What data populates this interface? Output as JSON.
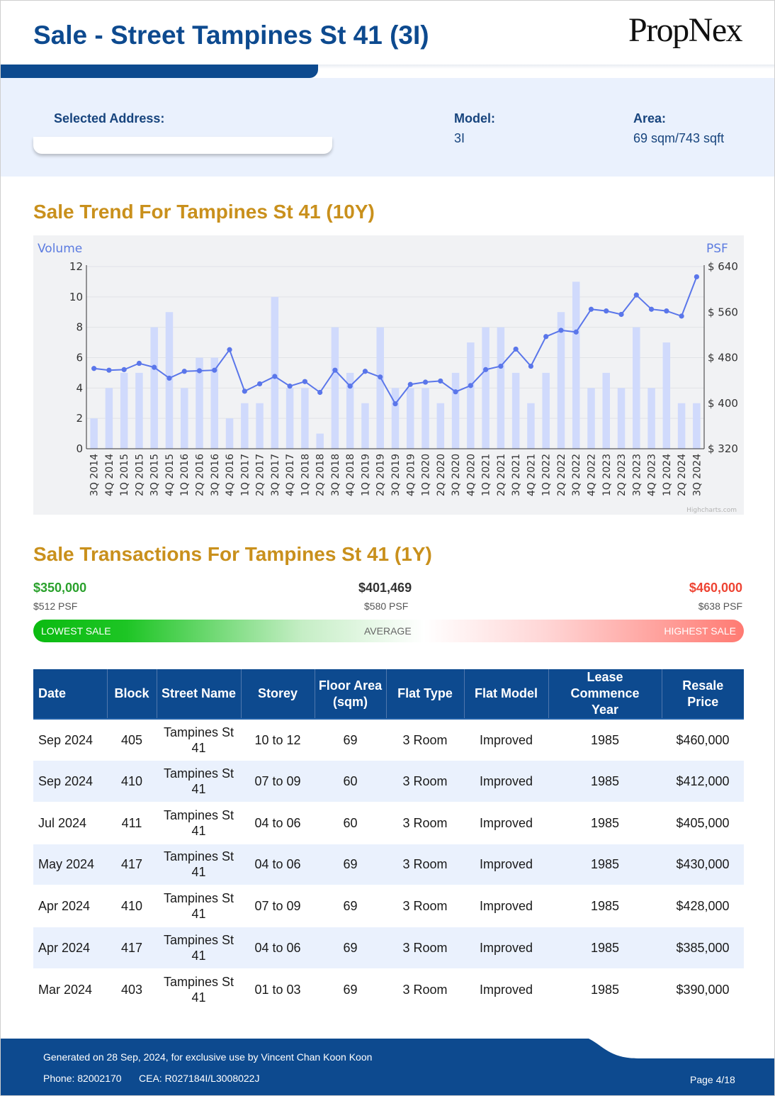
{
  "header": {
    "title": "Sale - Street Tampines St 41 (3I)",
    "logo_text": "PropNex"
  },
  "info": {
    "address_label": "Selected Address:",
    "address_value": "",
    "model_label": "Model:",
    "model_value": "3I",
    "area_label": "Area:",
    "area_value": "69 sqm/743 sqft"
  },
  "trend": {
    "title": "Sale Trend For Tampines St 41 (10Y)"
  },
  "chart_data": {
    "type": "bar+line",
    "left_axis_title": "Volume",
    "right_axis_title": "PSF",
    "left_ticks": [
      "0",
      "2",
      "4",
      "6",
      "8",
      "10",
      "12"
    ],
    "right_ticks": [
      "$ 320",
      "$ 400",
      "$ 480",
      "$ 560",
      "$ 640"
    ],
    "ylim_volume": [
      0,
      12
    ],
    "ylim_psf": [
      320,
      640
    ],
    "credit": "Highcharts.com",
    "categories": [
      "3Q 2014",
      "4Q 2014",
      "1Q 2015",
      "2Q 2015",
      "3Q 2015",
      "4Q 2015",
      "1Q 2016",
      "2Q 2016",
      "3Q 2016",
      "4Q 2016",
      "1Q 2017",
      "2Q 2017",
      "3Q 2017",
      "4Q 2017",
      "1Q 2018",
      "2Q 2018",
      "3Q 2018",
      "4Q 2018",
      "1Q 2019",
      "2Q 2019",
      "3Q 2019",
      "4Q 2019",
      "1Q 2020",
      "2Q 2020",
      "3Q 2020",
      "4Q 2020",
      "1Q 2021",
      "2Q 2021",
      "3Q 2021",
      "4Q 2021",
      "1Q 2022",
      "2Q 2022",
      "3Q 2022",
      "4Q 2022",
      "1Q 2023",
      "2Q 2023",
      "3Q 2023",
      "4Q 2023",
      "1Q 2024",
      "2Q 2024",
      "3Q 2024"
    ],
    "series": [
      {
        "name": "Volume",
        "type": "bar",
        "values": [
          2,
          4,
          5,
          5,
          8,
          9,
          4,
          6,
          6,
          2,
          3,
          3,
          10,
          4,
          4,
          1,
          8,
          5,
          3,
          8,
          4,
          4,
          4,
          3,
          5,
          7,
          8,
          8,
          5,
          3,
          5,
          9,
          11,
          4,
          5,
          4,
          8,
          4,
          7,
          3,
          3
        ]
      },
      {
        "name": "PSF",
        "type": "line",
        "values": [
          461,
          458,
          459,
          470,
          463,
          444,
          456,
          457,
          458,
          494,
          421,
          434,
          447,
          430,
          438,
          419,
          458,
          430,
          456,
          446,
          399,
          433,
          437,
          439,
          420,
          431,
          459,
          465,
          495,
          465,
          517,
          528,
          525,
          565,
          562,
          556,
          590,
          565,
          562,
          553,
          622
        ]
      }
    ]
  },
  "transactions": {
    "title": "Sale Transactions For Tampines St 41 (1Y)",
    "lowest": {
      "price": "$350,000",
      "psf": "$512 PSF",
      "label": "LOWEST SALE",
      "color": "#2aa12c"
    },
    "average": {
      "price": "$401,469",
      "psf": "$580 PSF",
      "label": "AVERAGE"
    },
    "highest": {
      "price": "$460,000",
      "psf": "$638 PSF",
      "label": "HIGHEST SALE",
      "color": "#ee4433"
    },
    "headers": [
      "Date",
      "Block",
      "Street Name",
      "Storey",
      "Floor Area (sqm)",
      "Flat Type",
      "Flat Model",
      "Lease Commence Year",
      "Resale Price"
    ],
    "rows": [
      {
        "date": "Sep 2024",
        "block": "405",
        "street": "Tampines St 41",
        "storey": "10 to 12",
        "area": "69",
        "type": "3 Room",
        "model": "Improved",
        "lease": "1985",
        "price": "$460,000"
      },
      {
        "date": "Sep 2024",
        "block": "410",
        "street": "Tampines St 41",
        "storey": "07 to 09",
        "area": "60",
        "type": "3 Room",
        "model": "Improved",
        "lease": "1985",
        "price": "$412,000"
      },
      {
        "date": "Jul 2024",
        "block": "411",
        "street": "Tampines St 41",
        "storey": "04 to 06",
        "area": "60",
        "type": "3 Room",
        "model": "Improved",
        "lease": "1985",
        "price": "$405,000"
      },
      {
        "date": "May 2024",
        "block": "417",
        "street": "Tampines St 41",
        "storey": "04 to 06",
        "area": "69",
        "type": "3 Room",
        "model": "Improved",
        "lease": "1985",
        "price": "$430,000"
      },
      {
        "date": "Apr 2024",
        "block": "410",
        "street": "Tampines St 41",
        "storey": "07 to 09",
        "area": "69",
        "type": "3 Room",
        "model": "Improved",
        "lease": "1985",
        "price": "$428,000"
      },
      {
        "date": "Apr 2024",
        "block": "417",
        "street": "Tampines St 41",
        "storey": "04 to 06",
        "area": "69",
        "type": "3 Room",
        "model": "Improved",
        "lease": "1985",
        "price": "$385,000"
      },
      {
        "date": "Mar 2024",
        "block": "403",
        "street": "Tampines St 41",
        "storey": "01 to 03",
        "area": "69",
        "type": "3 Room",
        "model": "Improved",
        "lease": "1985",
        "price": "$390,000"
      }
    ]
  },
  "footer": {
    "generated": "Generated on 28 Sep, 2024, for exclusive use by Vincent Chan Koon Koon",
    "phone": "Phone: 82002170",
    "cea": "CEA: R027184I/L3008022J",
    "page": "Page 4/18"
  }
}
